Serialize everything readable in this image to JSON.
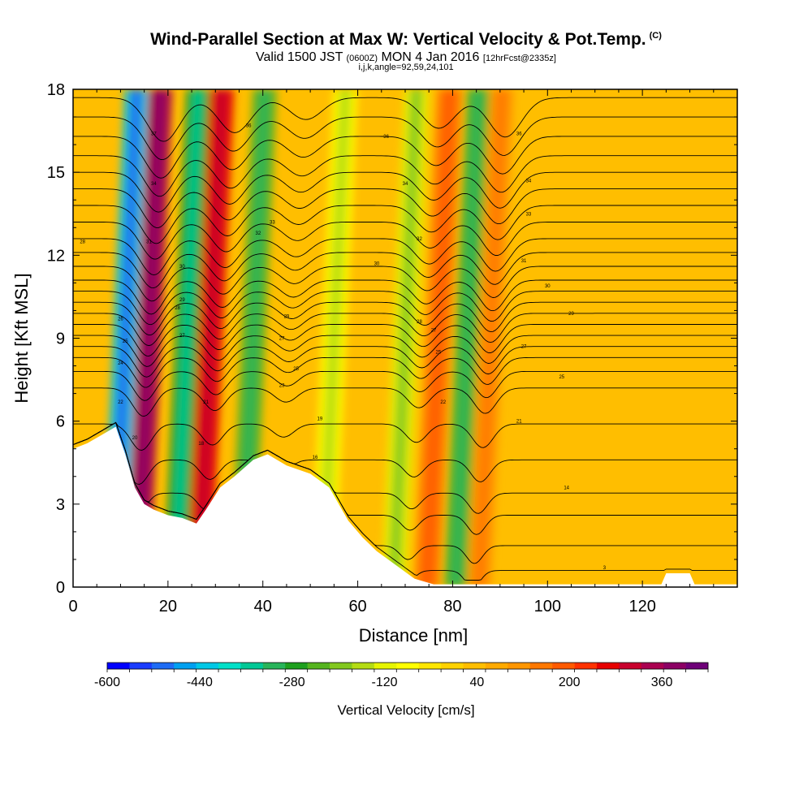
{
  "header": {
    "title": "Wind-Parallel Section at Max W: Vertical Velocity & Pot.Temp.",
    "copyright": "(C)",
    "valid_label": "Valid 1500 JST",
    "valid_utc": "(0600Z)",
    "valid_date": "MON 4 Jan 2016",
    "forecast": "[12hrFcst@2335z]",
    "params": "i,j,k,angle=92,59,24,101"
  },
  "chart_data": {
    "type": "heatmap",
    "title": "Wind-Parallel Section at Max W: Vertical Velocity & Pot.Temp.",
    "xlabel": "Distance [nm]",
    "ylabel": "Height [Kft MSL]",
    "xlim": [
      0,
      140
    ],
    "ylim": [
      0,
      18
    ],
    "xticks": [
      0,
      20,
      40,
      60,
      80,
      100,
      120
    ],
    "yticks": [
      0,
      3,
      6,
      9,
      12,
      15,
      18
    ],
    "colorbar": {
      "label": "Vertical Velocity [cm/s]",
      "range": [
        -600,
        440
      ],
      "step": 40,
      "ticks": [
        -600,
        -440,
        -280,
        -120,
        40,
        200,
        360
      ],
      "colors": [
        "#0000ff",
        "#1a3cff",
        "#1e6cf5",
        "#00a0f0",
        "#00c8e6",
        "#00e0c8",
        "#00c896",
        "#28b45a",
        "#1ea01e",
        "#55b41e",
        "#82c81e",
        "#b4dc14",
        "#e6f500",
        "#ffff00",
        "#ffe600",
        "#ffd200",
        "#ffbe00",
        "#ffaa00",
        "#ff9600",
        "#ff7800",
        "#ff5a00",
        "#ff3200",
        "#e60000",
        "#c8002d",
        "#aa0050",
        "#8c0064",
        "#6e0078"
      ]
    },
    "vertical_velocity_bands": [
      {
        "x": 11,
        "value": -440
      },
      {
        "x": 16,
        "value": 360
      },
      {
        "x": 24,
        "value": -280
      },
      {
        "x": 29,
        "value": 280
      },
      {
        "x": 38,
        "value": -240
      },
      {
        "x": 55,
        "value": -80
      },
      {
        "x": 70,
        "value": -120
      },
      {
        "x": 77,
        "value": 160
      },
      {
        "x": 83,
        "value": -240
      },
      {
        "x": 88,
        "value": 120
      }
    ],
    "terrain_kft": [
      {
        "x": 0,
        "h": 5.0
      },
      {
        "x": 3,
        "h": 5.2
      },
      {
        "x": 6,
        "h": 5.5
      },
      {
        "x": 9,
        "h": 5.8
      },
      {
        "x": 11,
        "h": 4.8
      },
      {
        "x": 13,
        "h": 3.6
      },
      {
        "x": 15,
        "h": 3.0
      },
      {
        "x": 17,
        "h": 2.8
      },
      {
        "x": 20,
        "h": 2.6
      },
      {
        "x": 23,
        "h": 2.5
      },
      {
        "x": 26,
        "h": 2.3
      },
      {
        "x": 28,
        "h": 2.8
      },
      {
        "x": 31,
        "h": 3.6
      },
      {
        "x": 34,
        "h": 4.0
      },
      {
        "x": 38,
        "h": 4.6
      },
      {
        "x": 41,
        "h": 4.8
      },
      {
        "x": 45,
        "h": 4.4
      },
      {
        "x": 50,
        "h": 4.1
      },
      {
        "x": 54,
        "h": 3.6
      },
      {
        "x": 58,
        "h": 2.4
      },
      {
        "x": 61,
        "h": 1.8
      },
      {
        "x": 64,
        "h": 1.3
      },
      {
        "x": 68,
        "h": 0.8
      },
      {
        "x": 72,
        "h": 0.3
      },
      {
        "x": 76,
        "h": 0.1
      },
      {
        "x": 80,
        "h": 0.1
      },
      {
        "x": 124,
        "h": 0.1
      },
      {
        "x": 125,
        "h": 0.5
      },
      {
        "x": 130,
        "h": 0.5
      },
      {
        "x": 131,
        "h": 0.1
      },
      {
        "x": 140,
        "h": 0.1
      }
    ],
    "pot_temp_contours": {
      "base_heights_kft": [
        0.6,
        1.5,
        2.6,
        3.4,
        4.6,
        5.9,
        7.2,
        7.8,
        8.3,
        8.7,
        9.1,
        9.5,
        9.9,
        10.3,
        10.7,
        11.1,
        11.6,
        12.1,
        12.6,
        13.2,
        13.8,
        14.4,
        15.0,
        15.6,
        16.3,
        17.0,
        17.7
      ],
      "labels": [
        {
          "x": 2,
          "y": 12.5,
          "text": "28"
        },
        {
          "x": 17,
          "y": 16.4,
          "text": "37"
        },
        {
          "x": 17,
          "y": 14.6,
          "text": "34"
        },
        {
          "x": 16,
          "y": 12.5,
          "text": "31"
        },
        {
          "x": 23,
          "y": 11.6,
          "text": "30"
        },
        {
          "x": 23,
          "y": 10.4,
          "text": "29"
        },
        {
          "x": 22,
          "y": 10.1,
          "text": "28"
        },
        {
          "x": 23,
          "y": 9.1,
          "text": "27"
        },
        {
          "x": 10,
          "y": 9.7,
          "text": "26"
        },
        {
          "x": 11,
          "y": 8.9,
          "text": "25"
        },
        {
          "x": 10,
          "y": 8.1,
          "text": "24"
        },
        {
          "x": 10,
          "y": 6.7,
          "text": "22"
        },
        {
          "x": 13,
          "y": 5.4,
          "text": "20"
        },
        {
          "x": 28,
          "y": 6.7,
          "text": "21"
        },
        {
          "x": 27,
          "y": 5.2,
          "text": "18"
        },
        {
          "x": 37,
          "y": 16.7,
          "text": "36"
        },
        {
          "x": 42,
          "y": 13.2,
          "text": "33"
        },
        {
          "x": 39,
          "y": 12.8,
          "text": "32"
        },
        {
          "x": 45,
          "y": 9.8,
          "text": "29"
        },
        {
          "x": 44,
          "y": 9.0,
          "text": "27"
        },
        {
          "x": 47,
          "y": 7.9,
          "text": "25"
        },
        {
          "x": 44,
          "y": 7.3,
          "text": "23"
        },
        {
          "x": 52,
          "y": 6.1,
          "text": "19"
        },
        {
          "x": 51,
          "y": 4.7,
          "text": "16"
        },
        {
          "x": 66,
          "y": 16.3,
          "text": "36"
        },
        {
          "x": 70,
          "y": 14.6,
          "text": "34"
        },
        {
          "x": 73,
          "y": 12.6,
          "text": "32"
        },
        {
          "x": 64,
          "y": 11.7,
          "text": "30"
        },
        {
          "x": 73,
          "y": 9.6,
          "text": "28"
        },
        {
          "x": 76,
          "y": 9.3,
          "text": "27"
        },
        {
          "x": 77,
          "y": 8.5,
          "text": "25"
        },
        {
          "x": 78,
          "y": 6.7,
          "text": "22"
        },
        {
          "x": 94,
          "y": 16.4,
          "text": "36"
        },
        {
          "x": 96,
          "y": 14.7,
          "text": "34"
        },
        {
          "x": 96,
          "y": 13.5,
          "text": "33"
        },
        {
          "x": 95,
          "y": 11.8,
          "text": "31"
        },
        {
          "x": 100,
          "y": 10.9,
          "text": "30"
        },
        {
          "x": 105,
          "y": 9.9,
          "text": "29"
        },
        {
          "x": 95,
          "y": 8.7,
          "text": "27"
        },
        {
          "x": 103,
          "y": 7.6,
          "text": "25"
        },
        {
          "x": 94,
          "y": 6.0,
          "text": "21"
        },
        {
          "x": 104,
          "y": 3.6,
          "text": "14"
        },
        {
          "x": 112,
          "y": 0.7,
          "text": "3"
        }
      ]
    }
  }
}
